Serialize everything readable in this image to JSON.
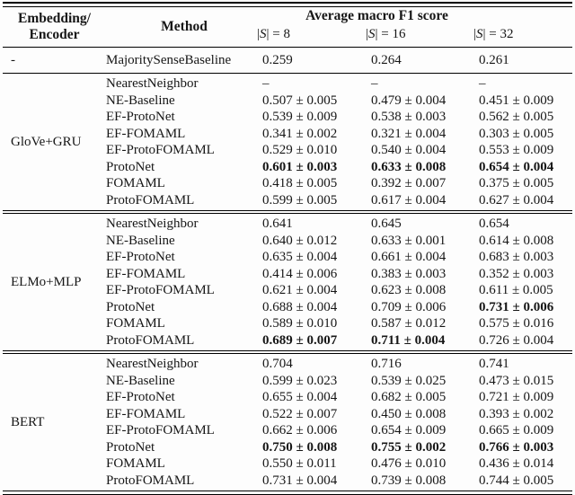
{
  "page": {
    "background": "#fdfdfd",
    "text_color": "#161616",
    "rule_color": "#000000"
  },
  "table": {
    "header": {
      "col1_line1": "Embedding/",
      "col1_line2": "Encoder",
      "col2": "Method",
      "group_title": "Average macro F1 score",
      "subcols": [
        "|S| = 8",
        "|S| = 16",
        "|S| = 32"
      ]
    },
    "sections": [
      {
        "encoder": "-",
        "rows": [
          {
            "method": "MajoritySenseBaseline",
            "values": [
              "0.259",
              "0.264",
              "0.261"
            ],
            "bold": [
              false,
              false,
              false
            ]
          }
        ]
      },
      {
        "encoder": "GloVe+GRU",
        "rows": [
          {
            "method": "NearestNeighbor",
            "values": [
              "–",
              "–",
              "–"
            ],
            "bold": [
              false,
              false,
              false
            ]
          },
          {
            "method": "NE-Baseline",
            "values": [
              "0.507 ± 0.005",
              "0.479 ± 0.004",
              "0.451 ± 0.009"
            ],
            "bold": [
              false,
              false,
              false
            ]
          },
          {
            "method": "EF-ProtoNet",
            "values": [
              "0.539 ± 0.009",
              "0.538 ± 0.003",
              "0.562 ± 0.005"
            ],
            "bold": [
              false,
              false,
              false
            ]
          },
          {
            "method": "EF-FOMAML",
            "values": [
              "0.341 ± 0.002",
              "0.321 ± 0.004",
              "0.303 ± 0.005"
            ],
            "bold": [
              false,
              false,
              false
            ]
          },
          {
            "method": "EF-ProtoFOMAML",
            "values": [
              "0.529 ± 0.010",
              "0.540 ± 0.004",
              "0.553 ± 0.009"
            ],
            "bold": [
              false,
              false,
              false
            ]
          },
          {
            "method": "ProtoNet",
            "values": [
              "0.601 ± 0.003",
              "0.633 ± 0.008",
              "0.654 ± 0.004"
            ],
            "bold": [
              true,
              true,
              true
            ]
          },
          {
            "method": "FOMAML",
            "values": [
              "0.418 ± 0.005",
              "0.392 ± 0.007",
              "0.375 ± 0.005"
            ],
            "bold": [
              false,
              false,
              false
            ]
          },
          {
            "method": "ProtoFOMAML",
            "values": [
              "0.599 ± 0.005",
              "0.617 ± 0.004",
              "0.627 ± 0.004"
            ],
            "bold": [
              false,
              false,
              false
            ]
          }
        ]
      },
      {
        "encoder": "ELMo+MLP",
        "rows": [
          {
            "method": "NearestNeighbor",
            "values": [
              "0.641",
              "0.645",
              "0.654"
            ],
            "bold": [
              false,
              false,
              false
            ]
          },
          {
            "method": "NE-Baseline",
            "values": [
              "0.640 ± 0.012",
              "0.633 ± 0.001",
              "0.614 ± 0.008"
            ],
            "bold": [
              false,
              false,
              false
            ]
          },
          {
            "method": "EF-ProtoNet",
            "values": [
              "0.635 ± 0.004",
              "0.661 ± 0.004",
              "0.683 ± 0.003"
            ],
            "bold": [
              false,
              false,
              false
            ]
          },
          {
            "method": "EF-FOMAML",
            "values": [
              "0.414 ± 0.006",
              "0.383 ± 0.003",
              "0.352 ± 0.003"
            ],
            "bold": [
              false,
              false,
              false
            ]
          },
          {
            "method": "EF-ProtoFOMAML",
            "values": [
              "0.621 ± 0.004",
              "0.623 ± 0.008",
              "0.611 ± 0.005"
            ],
            "bold": [
              false,
              false,
              false
            ]
          },
          {
            "method": "ProtoNet",
            "values": [
              "0.688 ± 0.004",
              "0.709 ± 0.006",
              "0.731 ± 0.006"
            ],
            "bold": [
              false,
              false,
              true
            ]
          },
          {
            "method": "FOMAML",
            "values": [
              "0.589 ± 0.010",
              "0.587 ± 0.012",
              "0.575 ± 0.016"
            ],
            "bold": [
              false,
              false,
              false
            ]
          },
          {
            "method": "ProtoFOMAML",
            "values": [
              "0.689 ± 0.007",
              "0.711 ± 0.004",
              "0.726 ± 0.004"
            ],
            "bold": [
              true,
              true,
              false
            ]
          }
        ]
      },
      {
        "encoder": "BERT",
        "rows": [
          {
            "method": "NearestNeighbor",
            "values": [
              "0.704",
              "0.716",
              "0.741"
            ],
            "bold": [
              false,
              false,
              false
            ]
          },
          {
            "method": "NE-Baseline",
            "values": [
              "0.599 ± 0.023",
              "0.539 ± 0.025",
              "0.473 ± 0.015"
            ],
            "bold": [
              false,
              false,
              false
            ]
          },
          {
            "method": "EF-ProtoNet",
            "values": [
              "0.655 ± 0.004",
              "0.682 ± 0.005",
              "0.721 ± 0.009"
            ],
            "bold": [
              false,
              false,
              false
            ]
          },
          {
            "method": "EF-FOMAML",
            "values": [
              "0.522 ± 0.007",
              "0.450 ± 0.008",
              "0.393 ± 0.002"
            ],
            "bold": [
              false,
              false,
              false
            ]
          },
          {
            "method": "EF-ProtoFOMAML",
            "values": [
              "0.662 ± 0.006",
              "0.654 ± 0.009",
              "0.665 ± 0.009"
            ],
            "bold": [
              false,
              false,
              false
            ]
          },
          {
            "method": "ProtoNet",
            "values": [
              "0.750 ± 0.008",
              "0.755 ± 0.002",
              "0.766 ± 0.003"
            ],
            "bold": [
              true,
              true,
              true
            ]
          },
          {
            "method": "FOMAML",
            "values": [
              "0.550 ± 0.011",
              "0.476 ± 0.010",
              "0.436 ± 0.014"
            ],
            "bold": [
              false,
              false,
              false
            ]
          },
          {
            "method": "ProtoFOMAML",
            "values": [
              "0.731 ± 0.004",
              "0.739 ± 0.008",
              "0.744 ± 0.005"
            ],
            "bold": [
              false,
              false,
              false
            ]
          }
        ]
      }
    ]
  }
}
